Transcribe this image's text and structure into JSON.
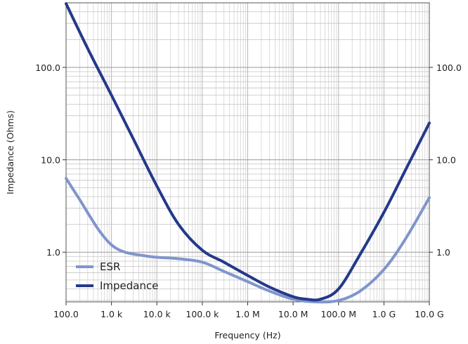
{
  "chart_data": {
    "type": "line",
    "xlabel": "Frequency (Hz)",
    "ylabel": "Impedance (Ohms)",
    "x_scale": "log",
    "y_scale": "log",
    "xlim": [
      100,
      10000000000
    ],
    "ylim": [
      0.29,
      500
    ],
    "grid": true,
    "legend_position": "bottom-left",
    "x_tick_labels": [
      {
        "value": 100,
        "label": "100.0"
      },
      {
        "value": 1000,
        "label": "1.0 k"
      },
      {
        "value": 10000,
        "label": "10.0 k"
      },
      {
        "value": 100000,
        "label": "100.0 k"
      },
      {
        "value": 1000000,
        "label": "1.0 M"
      },
      {
        "value": 10000000,
        "label": "10.0 M"
      },
      {
        "value": 100000000,
        "label": "100.0 M"
      },
      {
        "value": 1000000000,
        "label": "1.0 G"
      },
      {
        "value": 10000000000,
        "label": "10.0 G"
      }
    ],
    "y_tick_labels": [
      {
        "value": 1,
        "label": "1.0"
      },
      {
        "value": 10,
        "label": "10.0"
      },
      {
        "value": 100,
        "label": "100.0"
      }
    ],
    "series": [
      {
        "name": "ESR",
        "color": "#7f95cc",
        "x": [
          100,
          200,
          500,
          1000,
          2000,
          5000,
          10000,
          30000,
          100000,
          300000,
          1000000,
          3000000,
          10000000,
          30000000,
          100000000,
          300000000,
          1000000000,
          3000000000,
          10000000000
        ],
        "y": [
          6.3,
          3.7,
          1.8,
          1.2,
          1.0,
          0.92,
          0.88,
          0.85,
          0.78,
          0.62,
          0.48,
          0.38,
          0.31,
          0.29,
          0.3,
          0.38,
          0.65,
          1.4,
          3.9
        ]
      },
      {
        "name": "Impedance",
        "color": "#24398a",
        "x": [
          100,
          300,
          1000,
          3000,
          10000,
          30000,
          100000,
          300000,
          1000000,
          3000000,
          10000000,
          20000000,
          40000000,
          100000000,
          300000000,
          1000000000,
          3000000000,
          10000000000
        ],
        "y": [
          490,
          160,
          50,
          17,
          5.2,
          2.0,
          1.05,
          0.78,
          0.56,
          0.42,
          0.33,
          0.31,
          0.31,
          0.4,
          0.95,
          2.7,
          7.8,
          25
        ]
      }
    ]
  }
}
